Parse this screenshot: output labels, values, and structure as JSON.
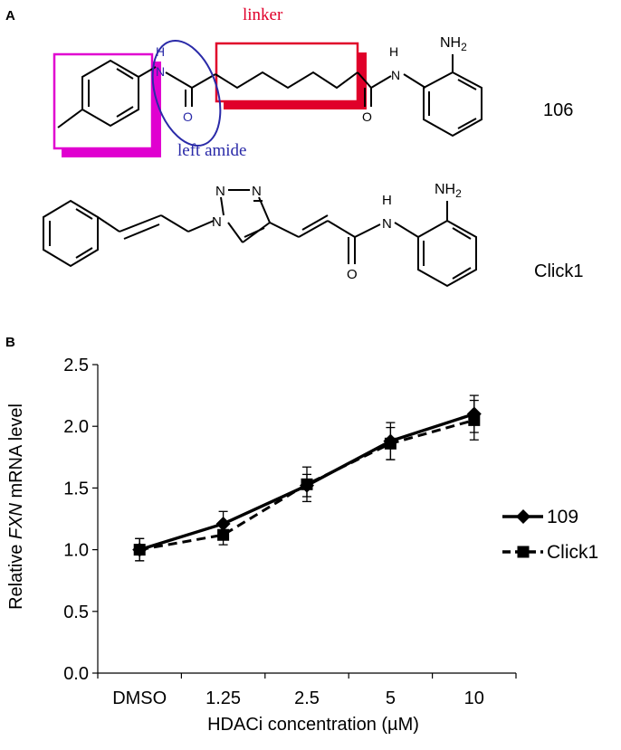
{
  "panels": {
    "a_label": "A",
    "b_label": "B"
  },
  "structures": {
    "compound_top": {
      "name": "106",
      "linker_label": "linker",
      "amide_label": "left amide",
      "atoms": {
        "nh": "NH",
        "o_left": "O",
        "o_right": "O",
        "amide_nh": "H",
        "amide_n": "N",
        "nh2": "NH",
        "nh2_sub": "2"
      }
    },
    "compound_bottom": {
      "name": "Click1",
      "atoms": {
        "n1": "N",
        "n2": "N",
        "n3": "N",
        "amide_h": "H",
        "amide_n": "N",
        "o": "O",
        "nh2": "NH",
        "nh2_sub": "2"
      }
    },
    "colors": {
      "magenta": "#e000d0",
      "blue": "#2a2aa8",
      "red": "#e0002a"
    }
  },
  "chart_data": {
    "type": "line",
    "categories": [
      "DMSO",
      "1.25",
      "2.5",
      "5",
      "10"
    ],
    "ylabel_prefix": "Relative ",
    "ylabel_italic": "FXN",
    "ylabel_suffix": " mRNA level",
    "xlabel": "HDACi concentration (µM)",
    "ylim": [
      0.0,
      2.5
    ],
    "yticks": [
      "0.0",
      "0.5",
      "1.0",
      "1.5",
      "2.0",
      "2.5"
    ],
    "ytick_values": [
      0.0,
      0.5,
      1.0,
      1.5,
      2.0,
      2.5
    ],
    "grid": false,
    "legend_position": "right",
    "series": [
      {
        "name": "109",
        "marker": "diamond",
        "line": "solid",
        "values": [
          1.0,
          1.21,
          1.52,
          1.88,
          2.1
        ],
        "errors": [
          0.09,
          0.1,
          0.09,
          0.15,
          0.15
        ]
      },
      {
        "name": "Click1",
        "marker": "square",
        "line": "dashed",
        "values": [
          1.0,
          1.12,
          1.53,
          1.86,
          2.05
        ],
        "errors": [
          0.09,
          0.08,
          0.14,
          0.13,
          0.16
        ]
      }
    ]
  }
}
